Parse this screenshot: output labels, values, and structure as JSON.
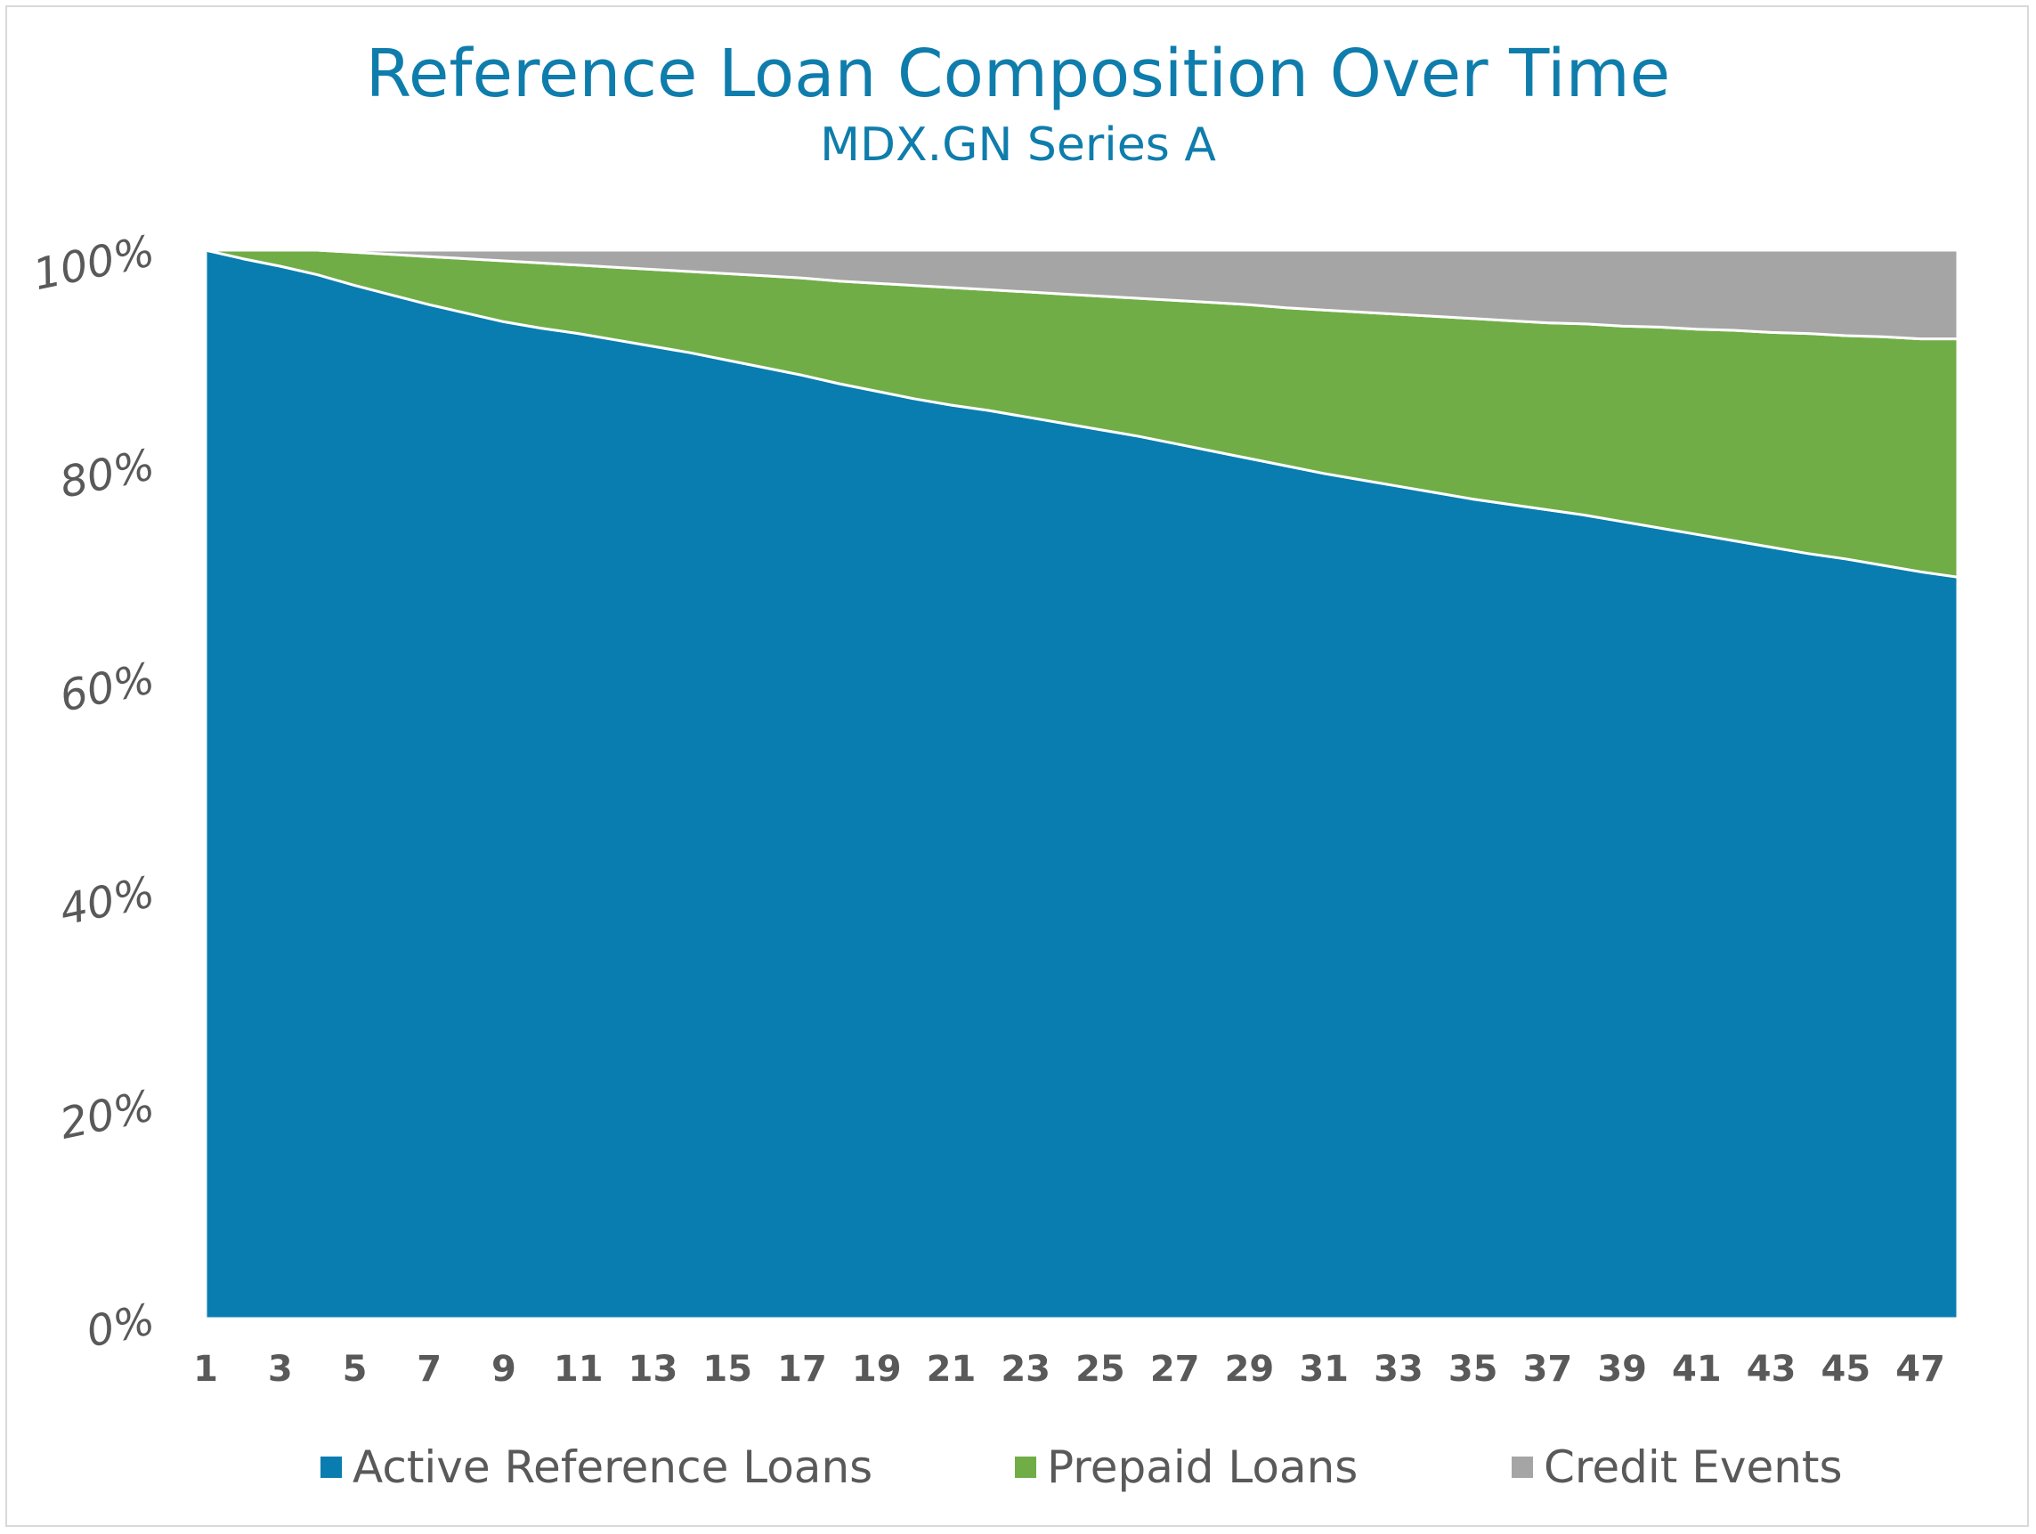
{
  "title": "Reference Loan Composition Over Time",
  "subtitle": "MDX.GN Series A",
  "colors": {
    "active": "#097daf",
    "prepaid": "#70ad47",
    "credit": "#a5a5a5",
    "title": "#0f7dac",
    "text": "#595959"
  },
  "chart_data": {
    "type": "area",
    "stacked": true,
    "title": "Reference Loan Composition Over Time",
    "subtitle": "MDX.GN Series A",
    "x": [
      1,
      2,
      3,
      4,
      5,
      6,
      7,
      8,
      9,
      10,
      11,
      12,
      13,
      14,
      15,
      16,
      17,
      18,
      19,
      20,
      21,
      22,
      23,
      24,
      25,
      26,
      27,
      28,
      29,
      30,
      31,
      32,
      33,
      34,
      35,
      36,
      37,
      38,
      39,
      40,
      41,
      42,
      43,
      44,
      45,
      46,
      47,
      48
    ],
    "x_tick_labels": [
      "1",
      "3",
      "5",
      "7",
      "9",
      "11",
      "13",
      "15",
      "17",
      "19",
      "21",
      "23",
      "25",
      "27",
      "29",
      "31",
      "33",
      "35",
      "37",
      "39",
      "41",
      "43",
      "45",
      "47"
    ],
    "y_tick_labels": [
      "0%",
      "20%",
      "40%",
      "60%",
      "80%",
      "100%"
    ],
    "ylim": [
      0,
      100
    ],
    "grid": false,
    "legend_position": "bottom",
    "series": [
      {
        "name": "Active Reference Loans",
        "color": "#097daf",
        "values": [
          100.0,
          99.2,
          98.5,
          97.7,
          96.7,
          95.8,
          94.9,
          94.1,
          93.3,
          92.7,
          92.2,
          91.6,
          91.0,
          90.4,
          89.7,
          89.0,
          88.3,
          87.5,
          86.8,
          86.1,
          85.5,
          85.0,
          84.4,
          83.8,
          83.2,
          82.6,
          81.9,
          81.2,
          80.5,
          79.8,
          79.1,
          78.5,
          77.9,
          77.3,
          76.7,
          76.2,
          75.7,
          75.2,
          74.6,
          74.0,
          73.4,
          72.8,
          72.2,
          71.6,
          71.1,
          70.5,
          69.9,
          69.4
        ]
      },
      {
        "name": "Prepaid Loans",
        "color": "#70ad47",
        "values": [
          0.0,
          0.8,
          1.5,
          2.3,
          3.1,
          3.8,
          4.5,
          5.1,
          5.7,
          6.1,
          6.4,
          6.8,
          7.2,
          7.6,
          8.1,
          8.6,
          9.1,
          9.6,
          10.1,
          10.6,
          11.0,
          11.3,
          11.7,
          12.1,
          12.5,
          12.9,
          13.4,
          13.9,
          14.4,
          14.8,
          15.3,
          15.7,
          16.1,
          16.5,
          16.9,
          17.2,
          17.5,
          17.9,
          18.3,
          18.8,
          19.2,
          19.7,
          20.1,
          20.6,
          20.9,
          21.4,
          21.8,
          22.3
        ]
      },
      {
        "name": "Credit Events",
        "color": "#a5a5a5",
        "values": [
          0.0,
          0.0,
          0.0,
          0.0,
          0.2,
          0.4,
          0.6,
          0.8,
          1.0,
          1.2,
          1.4,
          1.6,
          1.8,
          2.0,
          2.2,
          2.4,
          2.6,
          2.9,
          3.1,
          3.3,
          3.5,
          3.7,
          3.9,
          4.1,
          4.3,
          4.5,
          4.7,
          4.9,
          5.1,
          5.4,
          5.6,
          5.8,
          6.0,
          6.2,
          6.4,
          6.6,
          6.8,
          6.9,
          7.1,
          7.2,
          7.4,
          7.5,
          7.7,
          7.8,
          8.0,
          8.1,
          8.3,
          8.3
        ]
      }
    ]
  }
}
